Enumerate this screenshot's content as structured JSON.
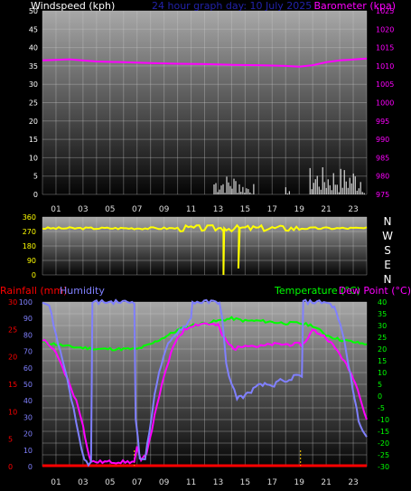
{
  "colors": {
    "background": "#000000",
    "wind": "#ffffff",
    "barometer": "#ff00ff",
    "direction": "#ffff00",
    "rainfall": "#ff0000",
    "humidity": "#8080ff",
    "temperature": "#00ff00",
    "dewpoint": "#ff00ff",
    "title": "#2222aa",
    "tick": "#ffffff",
    "hour_tick": "#dddddd"
  },
  "chart_data": [
    {
      "type": "line",
      "title": "24 hour graph day: 10 July 2025",
      "ylabel_left": "Windspeed (kph)",
      "ylabel_right": "Barometer (kpa)",
      "ylim_left": [
        0,
        50
      ],
      "ylim_right": [
        975,
        1025
      ],
      "yticks_left": [
        "0",
        "5",
        "10",
        "15",
        "20",
        "25",
        "30",
        "35",
        "40",
        "45",
        "50"
      ],
      "yticks_right": [
        "975",
        "980",
        "985",
        "990",
        "995",
        "1000",
        "1005",
        "1010",
        "1015",
        "1020",
        "1025"
      ],
      "xticks": [
        "01",
        "03",
        "05",
        "07",
        "09",
        "11",
        "13",
        "15",
        "17",
        "19",
        "21",
        "23"
      ],
      "x": [
        0,
        2,
        4,
        6,
        8,
        10,
        12,
        14,
        16,
        18,
        19,
        20,
        21,
        22,
        24
      ],
      "series": [
        {
          "name": "Barometer (kpa)",
          "axis": "right",
          "values": [
            1011.5,
            1011.8,
            1011.2,
            1011.0,
            1010.8,
            1010.6,
            1010.5,
            1010.3,
            1010.2,
            1010.0,
            1009.8,
            1010.2,
            1011.0,
            1011.5,
            1012.0
          ]
        }
      ],
      "wind_bursts": [
        {
          "x": [
            12.7,
            14.7
          ],
          "max": 5.5
        },
        {
          "x": [
            14.7,
            15.7
          ],
          "max": 3
        },
        {
          "x": [
            18.0,
            18.3
          ],
          "max": 2
        },
        {
          "x": [
            19.8,
            23.9
          ],
          "max": 7.5
        }
      ]
    },
    {
      "type": "line",
      "ylabel_right": [
        "N",
        "W",
        "S",
        "E",
        "N"
      ],
      "ylim": [
        0,
        360
      ],
      "yticks": [
        "0",
        "90",
        "180",
        "270",
        "360"
      ],
      "series": [
        {
          "name": "Wind direction",
          "base": 290,
          "from": 0,
          "to": 24,
          "dips": [
            {
              "x": 13.4,
              "to": 0
            },
            {
              "x": 14.5,
              "to": 40
            }
          ]
        }
      ]
    },
    {
      "type": "line",
      "ylabel_left": "Rainfall (mm)",
      "ylabel_left2": "Humidity",
      "ylabel_right": "Temperature (°C)",
      "ylabel_right2": "Dew Point (°C)",
      "ylim_rain": [
        0,
        30
      ],
      "ylim_humidity": [
        0,
        100
      ],
      "ylim_temp": [
        -30,
        40
      ],
      "yticks_rain": [
        "0",
        "5",
        "10",
        "15",
        "20",
        "25",
        "30"
      ],
      "yticks_humidity": [
        "0",
        "10",
        "20",
        "30",
        "40",
        "50",
        "60",
        "70",
        "80",
        "90",
        "100"
      ],
      "yticks_temp": [
        "-30",
        "-25",
        "-20",
        "-15",
        "-10",
        "-5",
        "0",
        "5",
        "10",
        "15",
        "20",
        "25",
        "30",
        "35",
        "40"
      ],
      "xticks": [
        "01",
        "03",
        "05",
        "07",
        "09",
        "11",
        "13",
        "15",
        "17",
        "19",
        "21",
        "23"
      ],
      "series": [
        {
          "name": "Humidity",
          "axis": "humidity",
          "x": [
            0,
            0.5,
            1.0,
            1.8,
            2.3,
            2.7,
            3.1,
            3.4,
            3.6,
            3.7,
            4.3,
            4.4,
            6.8,
            6.9,
            7.2,
            7.6,
            7.9,
            8.3,
            8.8,
            9.3,
            10.0,
            10.6,
            11.0,
            11.1,
            13.0,
            13.1,
            13.3,
            13.6,
            14.0,
            14.4,
            15.0,
            15.6,
            16.0,
            16.6,
            17.0,
            17.6,
            18.1,
            18.6,
            19.0,
            19.2,
            19.3,
            21.0,
            21.6,
            22.2,
            22.8,
            23.4,
            24.0
          ],
          "values": [
            100,
            98,
            80,
            55,
            35,
            18,
            4,
            2,
            2,
            100,
            100,
            100,
            100,
            30,
            5,
            5,
            20,
            45,
            62,
            74,
            82,
            86,
            90,
            100,
            100,
            100,
            90,
            62,
            50,
            42,
            43,
            47,
            49,
            50,
            49,
            52,
            51,
            55,
            55,
            55,
            100,
            100,
            97,
            82,
            55,
            28,
            18
          ]
        },
        {
          "name": "Temperature",
          "axis": "temp",
          "x": [
            0,
            2,
            4,
            6,
            7,
            8,
            9,
            10,
            11,
            12,
            13,
            14,
            15,
            16,
            18,
            19,
            20,
            21,
            22,
            23,
            24
          ],
          "values": [
            23,
            21,
            20,
            20,
            20,
            22,
            25,
            28,
            30,
            31,
            32,
            33,
            32,
            32,
            31,
            31,
            30,
            26,
            24,
            23,
            22
          ]
        },
        {
          "name": "Dew Point",
          "axis": "temp",
          "x": [
            0,
            0.5,
            1.0,
            1.5,
            2.0,
            2.5,
            3.0,
            3.3,
            3.6,
            6.8,
            7.0,
            7.3,
            7.7,
            8.1,
            8.5,
            9.0,
            9.5,
            10.0,
            10.5,
            11.0,
            12.0,
            13.0,
            13.3,
            13.8,
            14.3,
            15.0,
            16.0,
            17.0,
            18.0,
            19.0,
            19.3,
            20.0,
            21.0,
            22.0,
            23.0,
            23.5,
            24.0
          ],
          "values": [
            24,
            22,
            18,
            12,
            5,
            -2,
            -12,
            -22,
            -28,
            -28,
            -22,
            -28,
            -24,
            -14,
            -3,
            8,
            18,
            25,
            28,
            30,
            31,
            30,
            26,
            22,
            20,
            22,
            21,
            22,
            22,
            22,
            22,
            28,
            25,
            18,
            8,
            0,
            -10
          ]
        }
      ],
      "rain_markers": [
        6.8,
        19.1
      ]
    }
  ]
}
